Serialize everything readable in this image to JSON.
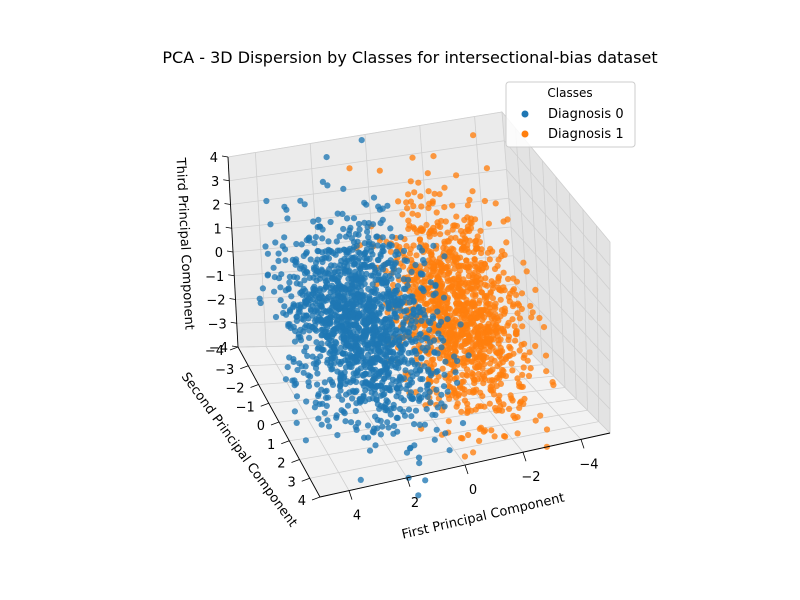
{
  "chart_data": {
    "type": "scatter",
    "title": "PCA - 3D Dispersion by Classes for intersectional-bias dataset",
    "xlabel": "First Principal Component",
    "ylabel": "Second Principal Component",
    "zlabel": "Third Principal Component",
    "xlim": [
      -5,
      5
    ],
    "ylim": [
      -4,
      4
    ],
    "zlim": [
      -4,
      4
    ],
    "x_ticks": [
      "4",
      "2",
      "0",
      "−2",
      "−4"
    ],
    "y_ticks": [
      "−4",
      "−3",
      "−2",
      "−1",
      "0",
      "1",
      "2",
      "3",
      "4"
    ],
    "z_ticks": [
      "4",
      "3",
      "2",
      "1",
      "0",
      "−1",
      "−2",
      "−3",
      "−4"
    ],
    "grid": true,
    "legend": {
      "title": "Classes",
      "placement": "top-right",
      "entries": [
        "Diagnosis 0",
        "Diagnosis 1"
      ]
    },
    "series": [
      {
        "name": "Diagnosis 0",
        "color": "#1f77b4",
        "x_range": [
          -1,
          5
        ],
        "y_range": [
          -4,
          4
        ],
        "z_range": [
          -4,
          4
        ],
        "approx_points": 1500
      },
      {
        "name": "Diagnosis 1",
        "color": "#ff7f0e",
        "x_range": [
          -4,
          1
        ],
        "y_range": [
          -4,
          4
        ],
        "z_range": [
          -4,
          4
        ],
        "approx_points": 1200
      }
    ]
  }
}
